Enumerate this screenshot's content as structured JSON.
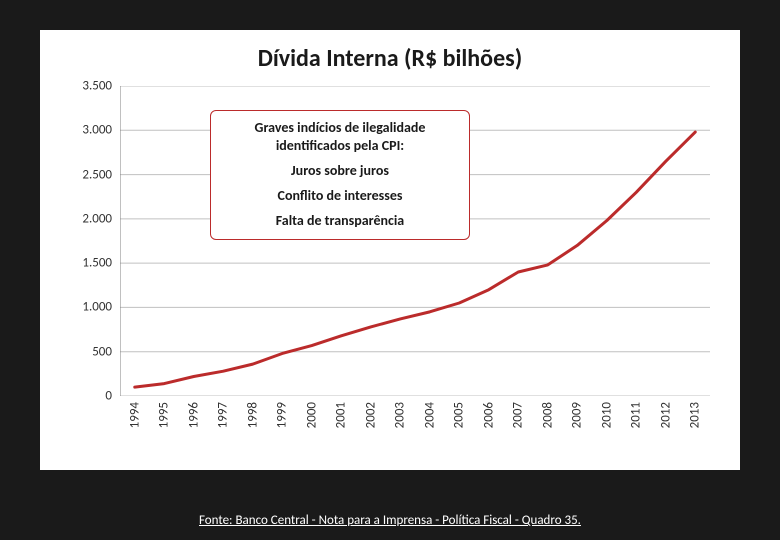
{
  "page": {
    "background_color": "#1a1a1a",
    "card_background": "#ffffff"
  },
  "chart": {
    "type": "line",
    "title": "Dívida Interna (R$ bilhões)",
    "title_fontsize": 24,
    "title_color": "#1a1a1a",
    "line_color": "#bb2b2b",
    "line_width": 3,
    "grid_color": "#c0c0c0",
    "axis_color": "#808080",
    "tick_font_size": 13,
    "tick_color": "#333333",
    "ylim": [
      0,
      3500
    ],
    "ytick_step": 500,
    "y_ticks": [
      "0",
      "500",
      "1.000",
      "1.500",
      "2.000",
      "2.500",
      "3.000",
      "3.500"
    ],
    "x_labels": [
      "1994",
      "1995",
      "1996",
      "1997",
      "1998",
      "1999",
      "2000",
      "2001",
      "2002",
      "2003",
      "2004",
      "2005",
      "2006",
      "2007",
      "2008",
      "2009",
      "2010",
      "2011",
      "2012",
      "2013"
    ],
    "values": [
      100,
      140,
      220,
      280,
      360,
      480,
      570,
      680,
      780,
      870,
      950,
      1050,
      1200,
      1400,
      1480,
      1700,
      1980,
      2300,
      2650,
      2980
    ],
    "x_label_rotation_deg": -90
  },
  "overlay": {
    "border_color": "#bb2b2b",
    "background_color": "#ffffff",
    "heading": "Graves indícios de ilegalidade identificados pela CPI:",
    "items": [
      "Juros sobre juros",
      "Conflito de interesses",
      "Falta de transparência"
    ],
    "font_size": 14,
    "text_color": "#1a1a1a"
  },
  "footer": {
    "text": "Fonte: Banco Central - Nota para a Imprensa - Política Fiscal - Quadro 35.",
    "font_size": 13,
    "color": "#ffffff"
  }
}
